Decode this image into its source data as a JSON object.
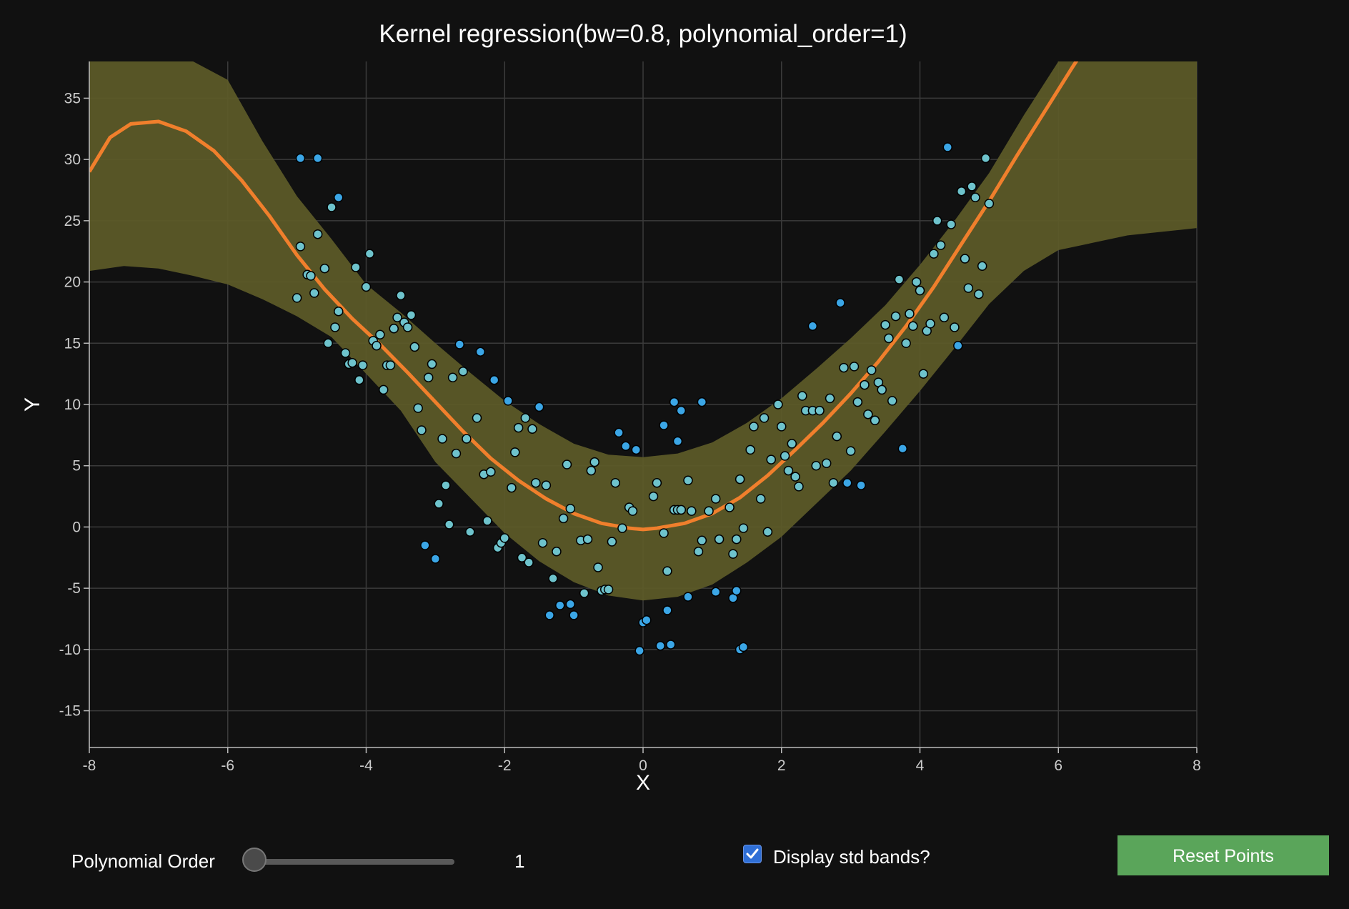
{
  "chart_data": {
    "type": "scatter",
    "title": "Kernel regression(bw=0.8, polynomial_order=1)",
    "xlabel": "X",
    "ylabel": "Y",
    "xlim": [
      -8,
      8
    ],
    "ylim": [
      -18,
      38
    ],
    "xticks": [
      -8,
      -6,
      -4,
      -2,
      0,
      2,
      4,
      6,
      8
    ],
    "yticks": [
      -15,
      -10,
      -5,
      0,
      5,
      10,
      15,
      20,
      25,
      30,
      35
    ],
    "grid": true,
    "colors": {
      "fit_line": "#f07f2c",
      "band": "#5c5a28",
      "point_in": "#6ec3cc",
      "point_out": "#3ba6e6",
      "point_edge": "#000000"
    },
    "regression_curve": [
      [
        -8,
        29
      ],
      [
        -7.7,
        31.8
      ],
      [
        -7.4,
        32.9
      ],
      [
        -7,
        33.1
      ],
      [
        -6.6,
        32.3
      ],
      [
        -6.2,
        30.7
      ],
      [
        -5.8,
        28.3
      ],
      [
        -5.4,
        25.4
      ],
      [
        -5,
        22.2
      ],
      [
        -4.6,
        19.4
      ],
      [
        -4.2,
        17
      ],
      [
        -3.8,
        14.9
      ],
      [
        -3.4,
        12.6
      ],
      [
        -3,
        10.2
      ],
      [
        -2.6,
        7.8
      ],
      [
        -2.2,
        5.6
      ],
      [
        -1.8,
        3.8
      ],
      [
        -1.4,
        2.3
      ],
      [
        -1,
        1.1
      ],
      [
        -0.6,
        0.3
      ],
      [
        -0.2,
        -0.1
      ],
      [
        0,
        -0.2
      ],
      [
        0.2,
        -0.1
      ],
      [
        0.6,
        0.3
      ],
      [
        1,
        1.1
      ],
      [
        1.4,
        2.4
      ],
      [
        1.8,
        4.2
      ],
      [
        2.2,
        6.3
      ],
      [
        2.6,
        8.5
      ],
      [
        3,
        10.9
      ],
      [
        3.4,
        13.5
      ],
      [
        3.8,
        16.4
      ],
      [
        4.2,
        19.6
      ],
      [
        4.6,
        23.1
      ],
      [
        5,
        26.6
      ],
      [
        5.4,
        30.3
      ],
      [
        5.8,
        33.9
      ],
      [
        6.2,
        37.5
      ],
      [
        6.5,
        40.1
      ]
    ],
    "band_upper": [
      [
        -8,
        38.5
      ],
      [
        -7,
        38.5
      ],
      [
        -6.5,
        38
      ],
      [
        -6,
        36.5
      ],
      [
        -5.5,
        31.5
      ],
      [
        -5,
        27
      ],
      [
        -4.5,
        23.5
      ],
      [
        -4,
        19.8
      ],
      [
        -3.5,
        17.5
      ],
      [
        -3,
        15
      ],
      [
        -2.5,
        12.6
      ],
      [
        -2,
        10.3
      ],
      [
        -1.5,
        8.4
      ],
      [
        -1,
        6.8
      ],
      [
        -0.5,
        5.9
      ],
      [
        0,
        5.7
      ],
      [
        0.5,
        6
      ],
      [
        1,
        6.9
      ],
      [
        1.5,
        8.5
      ],
      [
        2,
        10.5
      ],
      [
        2.5,
        12.9
      ],
      [
        3,
        15.4
      ],
      [
        3.5,
        18.1
      ],
      [
        4,
        21.4
      ],
      [
        4.5,
        25
      ],
      [
        5,
        28.9
      ],
      [
        5.5,
        33.6
      ],
      [
        6,
        38
      ],
      [
        6.5,
        38.5
      ],
      [
        8,
        38.5
      ]
    ],
    "band_lower": [
      [
        -8,
        20.9
      ],
      [
        -7.5,
        21.3
      ],
      [
        -7,
        21.1
      ],
      [
        -6.5,
        20.5
      ],
      [
        -6,
        19.8
      ],
      [
        -5.5,
        18.6
      ],
      [
        -5,
        17.2
      ],
      [
        -4.5,
        15.5
      ],
      [
        -4,
        12.5
      ],
      [
        -3.5,
        9.5
      ],
      [
        -3,
        5.3
      ],
      [
        -2.5,
        2.4
      ],
      [
        -2,
        -0.5
      ],
      [
        -1.5,
        -2.8
      ],
      [
        -1,
        -4.5
      ],
      [
        -0.5,
        -5.6
      ],
      [
        0,
        -6
      ],
      [
        0.5,
        -5.7
      ],
      [
        1,
        -4.7
      ],
      [
        1.5,
        -2.9
      ],
      [
        2,
        -0.8
      ],
      [
        2.5,
        1.9
      ],
      [
        3,
        4.6
      ],
      [
        3.5,
        7.8
      ],
      [
        4,
        11.1
      ],
      [
        4.5,
        14.6
      ],
      [
        5,
        18.2
      ],
      [
        5.5,
        20.9
      ],
      [
        6,
        22.6
      ],
      [
        7,
        23.8
      ],
      [
        8,
        24.4
      ]
    ],
    "points_inside": [
      [
        -5,
        18.7
      ],
      [
        -4.95,
        22.9
      ],
      [
        -4.85,
        20.6
      ],
      [
        -4.8,
        20.5
      ],
      [
        -4.75,
        19.1
      ],
      [
        -4.7,
        23.9
      ],
      [
        -4.6,
        21.1
      ],
      [
        -4.55,
        15
      ],
      [
        -4.5,
        26.1
      ],
      [
        -4.45,
        16.3
      ],
      [
        -4.4,
        17.6
      ],
      [
        -4.3,
        14.2
      ],
      [
        -4.25,
        13.3
      ],
      [
        -4.2,
        13.4
      ],
      [
        -4.15,
        21.2
      ],
      [
        -4.1,
        12
      ],
      [
        -4.05,
        13.2
      ],
      [
        -4,
        19.6
      ],
      [
        -3.95,
        22.3
      ],
      [
        -3.9,
        15.2
      ],
      [
        -3.85,
        14.8
      ],
      [
        -3.8,
        15.7
      ],
      [
        -3.75,
        11.2
      ],
      [
        -3.7,
        13.2
      ],
      [
        -3.65,
        13.2
      ],
      [
        -3.6,
        16.2
      ],
      [
        -3.55,
        17.1
      ],
      [
        -3.5,
        18.9
      ],
      [
        -3.45,
        16.7
      ],
      [
        -3.4,
        16.3
      ],
      [
        -3.35,
        17.3
      ],
      [
        -3.3,
        14.7
      ],
      [
        -3.25,
        9.7
      ],
      [
        -3.2,
        7.9
      ],
      [
        -3.1,
        12.2
      ],
      [
        -3.05,
        13.3
      ],
      [
        -2.95,
        1.9
      ],
      [
        -2.9,
        7.2
      ],
      [
        -2.85,
        3.4
      ],
      [
        -2.8,
        0.2
      ],
      [
        -2.75,
        12.2
      ],
      [
        -2.7,
        6
      ],
      [
        -2.6,
        12.7
      ],
      [
        -2.55,
        7.2
      ],
      [
        -2.5,
        -0.4
      ],
      [
        -2.4,
        8.9
      ],
      [
        -2.3,
        4.3
      ],
      [
        -2.25,
        0.5
      ],
      [
        -2.2,
        4.5
      ],
      [
        -2.1,
        -1.7
      ],
      [
        -2.05,
        -1.3
      ],
      [
        -2,
        -0.9
      ],
      [
        -1.9,
        3.2
      ],
      [
        -1.85,
        6.1
      ],
      [
        -1.8,
        8.1
      ],
      [
        -1.75,
        -2.5
      ],
      [
        -1.7,
        8.9
      ],
      [
        -1.65,
        -2.9
      ],
      [
        -1.6,
        8
      ],
      [
        -1.55,
        3.6
      ],
      [
        -1.45,
        -1.3
      ],
      [
        -1.4,
        3.4
      ],
      [
        -1.3,
        -4.2
      ],
      [
        -1.25,
        -2
      ],
      [
        -1.15,
        0.7
      ],
      [
        -1.1,
        5.1
      ],
      [
        -1.05,
        1.5
      ],
      [
        -0.9,
        -1.1
      ],
      [
        -0.85,
        -5.4
      ],
      [
        -0.8,
        -1
      ],
      [
        -0.75,
        4.6
      ],
      [
        -0.7,
        5.3
      ],
      [
        -0.65,
        -3.3
      ],
      [
        -0.6,
        -5.2
      ],
      [
        -0.55,
        -5.1
      ],
      [
        -0.5,
        -5.1
      ],
      [
        -0.45,
        -1.2
      ],
      [
        -0.4,
        3.6
      ],
      [
        -0.3,
        -0.1
      ],
      [
        -0.2,
        1.6
      ],
      [
        -0.15,
        1.3
      ],
      [
        0.15,
        2.5
      ],
      [
        0.2,
        3.6
      ],
      [
        0.3,
        -0.5
      ],
      [
        0.35,
        -3.6
      ],
      [
        0.45,
        1.4
      ],
      [
        0.5,
        1.4
      ],
      [
        0.55,
        1.4
      ],
      [
        0.65,
        3.8
      ],
      [
        0.7,
        1.3
      ],
      [
        0.8,
        -2
      ],
      [
        0.85,
        -1.1
      ],
      [
        0.95,
        1.3
      ],
      [
        1.05,
        2.3
      ],
      [
        1.1,
        -1
      ],
      [
        1.25,
        1.6
      ],
      [
        1.3,
        -2.2
      ],
      [
        1.35,
        -1
      ],
      [
        1.4,
        3.9
      ],
      [
        1.45,
        -0.1
      ],
      [
        1.55,
        6.3
      ],
      [
        1.6,
        8.2
      ],
      [
        1.7,
        2.3
      ],
      [
        1.75,
        8.9
      ],
      [
        1.8,
        -0.4
      ],
      [
        1.85,
        5.5
      ],
      [
        1.95,
        10
      ],
      [
        2,
        8.2
      ],
      [
        2.05,
        5.8
      ],
      [
        2.1,
        4.6
      ],
      [
        2.15,
        6.8
      ],
      [
        2.2,
        4.1
      ],
      [
        2.25,
        3.3
      ],
      [
        2.3,
        10.7
      ],
      [
        2.35,
        9.5
      ],
      [
        2.45,
        9.5
      ],
      [
        2.5,
        5
      ],
      [
        2.55,
        9.5
      ],
      [
        2.65,
        5.2
      ],
      [
        2.7,
        10.5
      ],
      [
        2.75,
        3.6
      ],
      [
        2.8,
        7.4
      ],
      [
        2.9,
        13
      ],
      [
        3,
        6.2
      ],
      [
        3.05,
        13.1
      ],
      [
        3.1,
        10.2
      ],
      [
        3.2,
        11.6
      ],
      [
        3.25,
        9.2
      ],
      [
        3.3,
        12.8
      ],
      [
        3.35,
        8.7
      ],
      [
        3.4,
        11.8
      ],
      [
        3.45,
        11.2
      ],
      [
        3.5,
        16.5
      ],
      [
        3.55,
        15.4
      ],
      [
        3.6,
        10.3
      ],
      [
        3.65,
        17.2
      ],
      [
        3.7,
        20.2
      ],
      [
        3.8,
        15
      ],
      [
        3.85,
        17.4
      ],
      [
        3.9,
        16.4
      ],
      [
        3.95,
        20
      ],
      [
        4,
        19.3
      ],
      [
        4.05,
        12.5
      ],
      [
        4.1,
        16
      ],
      [
        4.15,
        16.6
      ],
      [
        4.2,
        22.3
      ],
      [
        4.25,
        25
      ],
      [
        4.3,
        23
      ],
      [
        4.35,
        17.1
      ],
      [
        4.45,
        24.7
      ],
      [
        4.5,
        16.3
      ],
      [
        4.6,
        27.4
      ],
      [
        4.65,
        21.9
      ],
      [
        4.7,
        19.5
      ],
      [
        4.75,
        27.8
      ],
      [
        4.8,
        26.9
      ],
      [
        4.85,
        19
      ],
      [
        4.9,
        21.3
      ],
      [
        4.95,
        30.1
      ],
      [
        5,
        26.4
      ]
    ],
    "points_outside": [
      [
        -4.95,
        30.1
      ],
      [
        -4.7,
        30.1
      ],
      [
        -4.4,
        26.9
      ],
      [
        -2.65,
        14.9
      ],
      [
        -2.35,
        14.3
      ],
      [
        -2.15,
        12
      ],
      [
        -1.95,
        10.3
      ],
      [
        -1.5,
        9.8
      ],
      [
        -1.35,
        -7.2
      ],
      [
        -1.2,
        -6.4
      ],
      [
        -1.05,
        -6.3
      ],
      [
        -1,
        -7.2
      ],
      [
        -3.15,
        -1.5
      ],
      [
        -3,
        -2.6
      ],
      [
        -0.35,
        7.7
      ],
      [
        -0.25,
        6.6
      ],
      [
        -0.1,
        6.3
      ],
      [
        -0.05,
        -10.1
      ],
      [
        0,
        -7.8
      ],
      [
        0.05,
        -7.6
      ],
      [
        0.25,
        -9.7
      ],
      [
        0.3,
        8.3
      ],
      [
        0.35,
        -6.8
      ],
      [
        0.4,
        -9.6
      ],
      [
        0.45,
        10.2
      ],
      [
        0.5,
        7
      ],
      [
        0.55,
        9.5
      ],
      [
        0.65,
        -5.7
      ],
      [
        0.85,
        10.2
      ],
      [
        1.05,
        -5.3
      ],
      [
        1.3,
        -5.8
      ],
      [
        1.35,
        -5.2
      ],
      [
        1.4,
        -10
      ],
      [
        1.45,
        -9.8
      ],
      [
        2.45,
        16.4
      ],
      [
        2.85,
        18.3
      ],
      [
        2.95,
        3.6
      ],
      [
        3.15,
        3.4
      ],
      [
        3.75,
        6.4
      ],
      [
        4.4,
        31
      ],
      [
        4.55,
        14.8
      ]
    ]
  },
  "controls": {
    "poly_label": "Polynomial Order",
    "slider_value": "1",
    "slider_fraction": 0.05,
    "checkbox_label": "Display std bands?",
    "checkbox_checked": true,
    "reset_label": "Reset Points"
  }
}
